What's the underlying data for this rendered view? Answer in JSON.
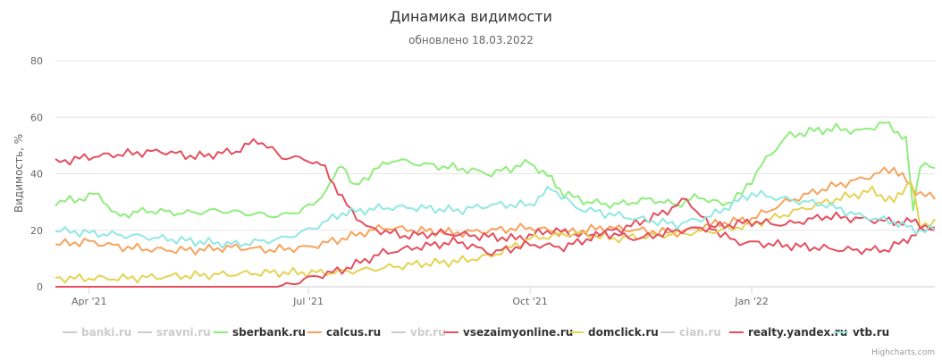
{
  "chart_data": {
    "type": "line",
    "title": "Динамика видимости",
    "subtitle": "обновлено 18.03.2022",
    "ylabel": "Видимость, %",
    "ylim": [
      0,
      80
    ],
    "y_ticks": [
      "0",
      "20",
      "40",
      "60",
      "80"
    ],
    "x_tick_labels": [
      "Apr '21",
      "Jul '21",
      "Oct '21",
      "Jan '22"
    ],
    "x_tick_dates": [
      "2021-04-01",
      "2021-07-01",
      "2021-10-01",
      "2022-01-01"
    ],
    "x_start": "2021-03-18",
    "x_end": "2022-03-18",
    "grid": true,
    "legend_position": "bottom",
    "credits": "Highcharts.com",
    "series": [
      {
        "name": "banki.ru",
        "color": "#cccccc",
        "visible": false,
        "x": [],
        "y": []
      },
      {
        "name": "sravni.ru",
        "color": "#cccccc",
        "visible": false,
        "x": [],
        "y": []
      },
      {
        "name": "sberbank.ru",
        "color": "#90ed7d",
        "visible": true,
        "x": [
          "2021-03-18",
          "2021-03-28",
          "2021-04-05",
          "2021-04-12",
          "2021-04-25",
          "2021-05-10",
          "2021-05-25",
          "2021-06-05",
          "2021-06-20",
          "2021-06-27",
          "2021-07-03",
          "2021-07-10",
          "2021-07-15",
          "2021-07-20",
          "2021-07-28",
          "2021-08-05",
          "2021-08-20",
          "2021-09-01",
          "2021-09-15",
          "2021-10-01",
          "2021-10-10",
          "2021-10-15",
          "2021-10-25",
          "2021-11-05",
          "2021-11-20",
          "2021-12-01",
          "2021-12-10",
          "2021-12-20",
          "2021-12-28",
          "2022-01-05",
          "2022-01-15",
          "2022-01-25",
          "2022-02-05",
          "2022-02-15",
          "2022-02-25",
          "2022-03-01",
          "2022-03-06",
          "2022-03-09",
          "2022-03-12",
          "2022-03-18"
        ],
        "y": [
          30,
          31,
          33,
          25,
          27,
          26,
          27,
          26,
          25,
          27,
          29,
          36,
          44,
          35,
          41,
          45,
          43,
          42,
          40,
          44,
          38,
          33,
          30,
          29,
          31,
          29,
          32,
          29,
          33,
          43,
          53,
          55,
          56,
          55,
          58,
          56,
          52,
          27,
          44,
          42
        ]
      },
      {
        "name": "calcus.ru",
        "color": "#f7a35c",
        "visible": true,
        "x": [
          "2021-03-18",
          "2021-04-01",
          "2021-04-15",
          "2021-05-01",
          "2021-05-15",
          "2021-06-01",
          "2021-06-15",
          "2021-07-01",
          "2021-07-15",
          "2021-08-01",
          "2021-08-15",
          "2021-09-01",
          "2021-09-15",
          "2021-10-01",
          "2021-10-15",
          "2021-11-01",
          "2021-11-15",
          "2021-12-01",
          "2021-12-15",
          "2022-01-01",
          "2022-01-15",
          "2022-02-01",
          "2022-02-15",
          "2022-03-01",
          "2022-03-10",
          "2022-03-18"
        ],
        "y": [
          15,
          16,
          14,
          13,
          13,
          14,
          13,
          14,
          17,
          21,
          20,
          19,
          20,
          21,
          19,
          21,
          20,
          19,
          22,
          24,
          30,
          35,
          38,
          42,
          34,
          31
        ]
      },
      {
        "name": "vbr.ru",
        "color": "#cccccc",
        "visible": false,
        "x": [],
        "y": []
      },
      {
        "name": "vsezaimyonline.ru",
        "color": "#e4505f",
        "visible": true,
        "x": [
          "2021-03-18",
          "2021-04-01",
          "2021-04-15",
          "2021-05-01",
          "2021-05-15",
          "2021-06-01",
          "2021-06-10",
          "2021-06-20",
          "2021-07-01",
          "2021-07-08",
          "2021-07-15",
          "2021-07-25",
          "2021-08-10",
          "2021-08-25",
          "2021-09-10",
          "2021-09-25",
          "2021-10-10",
          "2021-10-25",
          "2021-11-10",
          "2021-11-25",
          "2021-12-05",
          "2021-12-15",
          "2021-12-25",
          "2022-01-10",
          "2022-01-25",
          "2022-02-10",
          "2022-02-25",
          "2022-03-05",
          "2022-03-10",
          "2022-03-18"
        ],
        "y": [
          44,
          46,
          47,
          48,
          46,
          48,
          52,
          46,
          45,
          42,
          31,
          21,
          18,
          19,
          18,
          17,
          20,
          18,
          21,
          26,
          31,
          21,
          16,
          15,
          14,
          13,
          13,
          16,
          19,
          21
        ]
      },
      {
        "name": "domclick.ru",
        "color": "#e4d354",
        "visible": true,
        "x": [
          "2021-03-18",
          "2021-04-15",
          "2021-05-15",
          "2021-06-15",
          "2021-07-10",
          "2021-07-25",
          "2021-08-15",
          "2021-09-01",
          "2021-09-15",
          "2021-10-01",
          "2021-10-20",
          "2021-11-05",
          "2021-11-20",
          "2021-12-05",
          "2021-12-20",
          "2022-01-05",
          "2022-01-20",
          "2022-02-05",
          "2022-02-20",
          "2022-03-01",
          "2022-03-08",
          "2022-03-12",
          "2022-03-18"
        ],
        "y": [
          3,
          3,
          4,
          5,
          5,
          6,
          8,
          9,
          11,
          17,
          19,
          17,
          18,
          19,
          20,
          23,
          27,
          31,
          34,
          30,
          38,
          21,
          24
        ]
      },
      {
        "name": "cian.ru",
        "color": "#cccccc",
        "visible": false,
        "x": [],
        "y": []
      },
      {
        "name": "realty.yandex.ru",
        "color": "#e4505f",
        "visible": true,
        "x": [
          "2021-03-18",
          "2021-04-15",
          "2021-05-15",
          "2021-06-01",
          "2021-06-20",
          "2021-07-01",
          "2021-07-15",
          "2021-08-01",
          "2021-08-15",
          "2021-09-01",
          "2021-09-15",
          "2021-10-01",
          "2021-10-15",
          "2021-11-01",
          "2021-11-15",
          "2021-12-01",
          "2021-12-15",
          "2022-01-01",
          "2022-01-15",
          "2022-02-01",
          "2022-02-15",
          "2022-03-01",
          "2022-03-10",
          "2022-03-18"
        ],
        "y": [
          0,
          0,
          0,
          0,
          0,
          3,
          6,
          12,
          14,
          16,
          12,
          15,
          14,
          19,
          17,
          20,
          21,
          23,
          22,
          25,
          24,
          23,
          23,
          20
        ]
      },
      {
        "name": "vtb.ru",
        "color": "#91e8e1",
        "visible": true,
        "x": [
          "2021-03-18",
          "2021-04-01",
          "2021-04-20",
          "2021-05-15",
          "2021-06-01",
          "2021-06-20",
          "2021-07-01",
          "2021-07-15",
          "2021-08-01",
          "2021-08-15",
          "2021-09-01",
          "2021-09-15",
          "2021-10-01",
          "2021-10-10",
          "2021-10-20",
          "2021-11-01",
          "2021-11-15",
          "2021-12-01",
          "2021-12-15",
          "2022-01-01",
          "2022-01-15",
          "2022-02-01",
          "2022-02-15",
          "2022-03-01",
          "2022-03-10",
          "2022-03-18"
        ],
        "y": [
          20,
          19,
          18,
          16,
          15,
          17,
          20,
          26,
          28,
          28,
          27,
          29,
          29,
          35,
          28,
          26,
          24,
          22,
          25,
          33,
          31,
          29,
          25,
          23,
          20,
          20
        ]
      }
    ]
  }
}
